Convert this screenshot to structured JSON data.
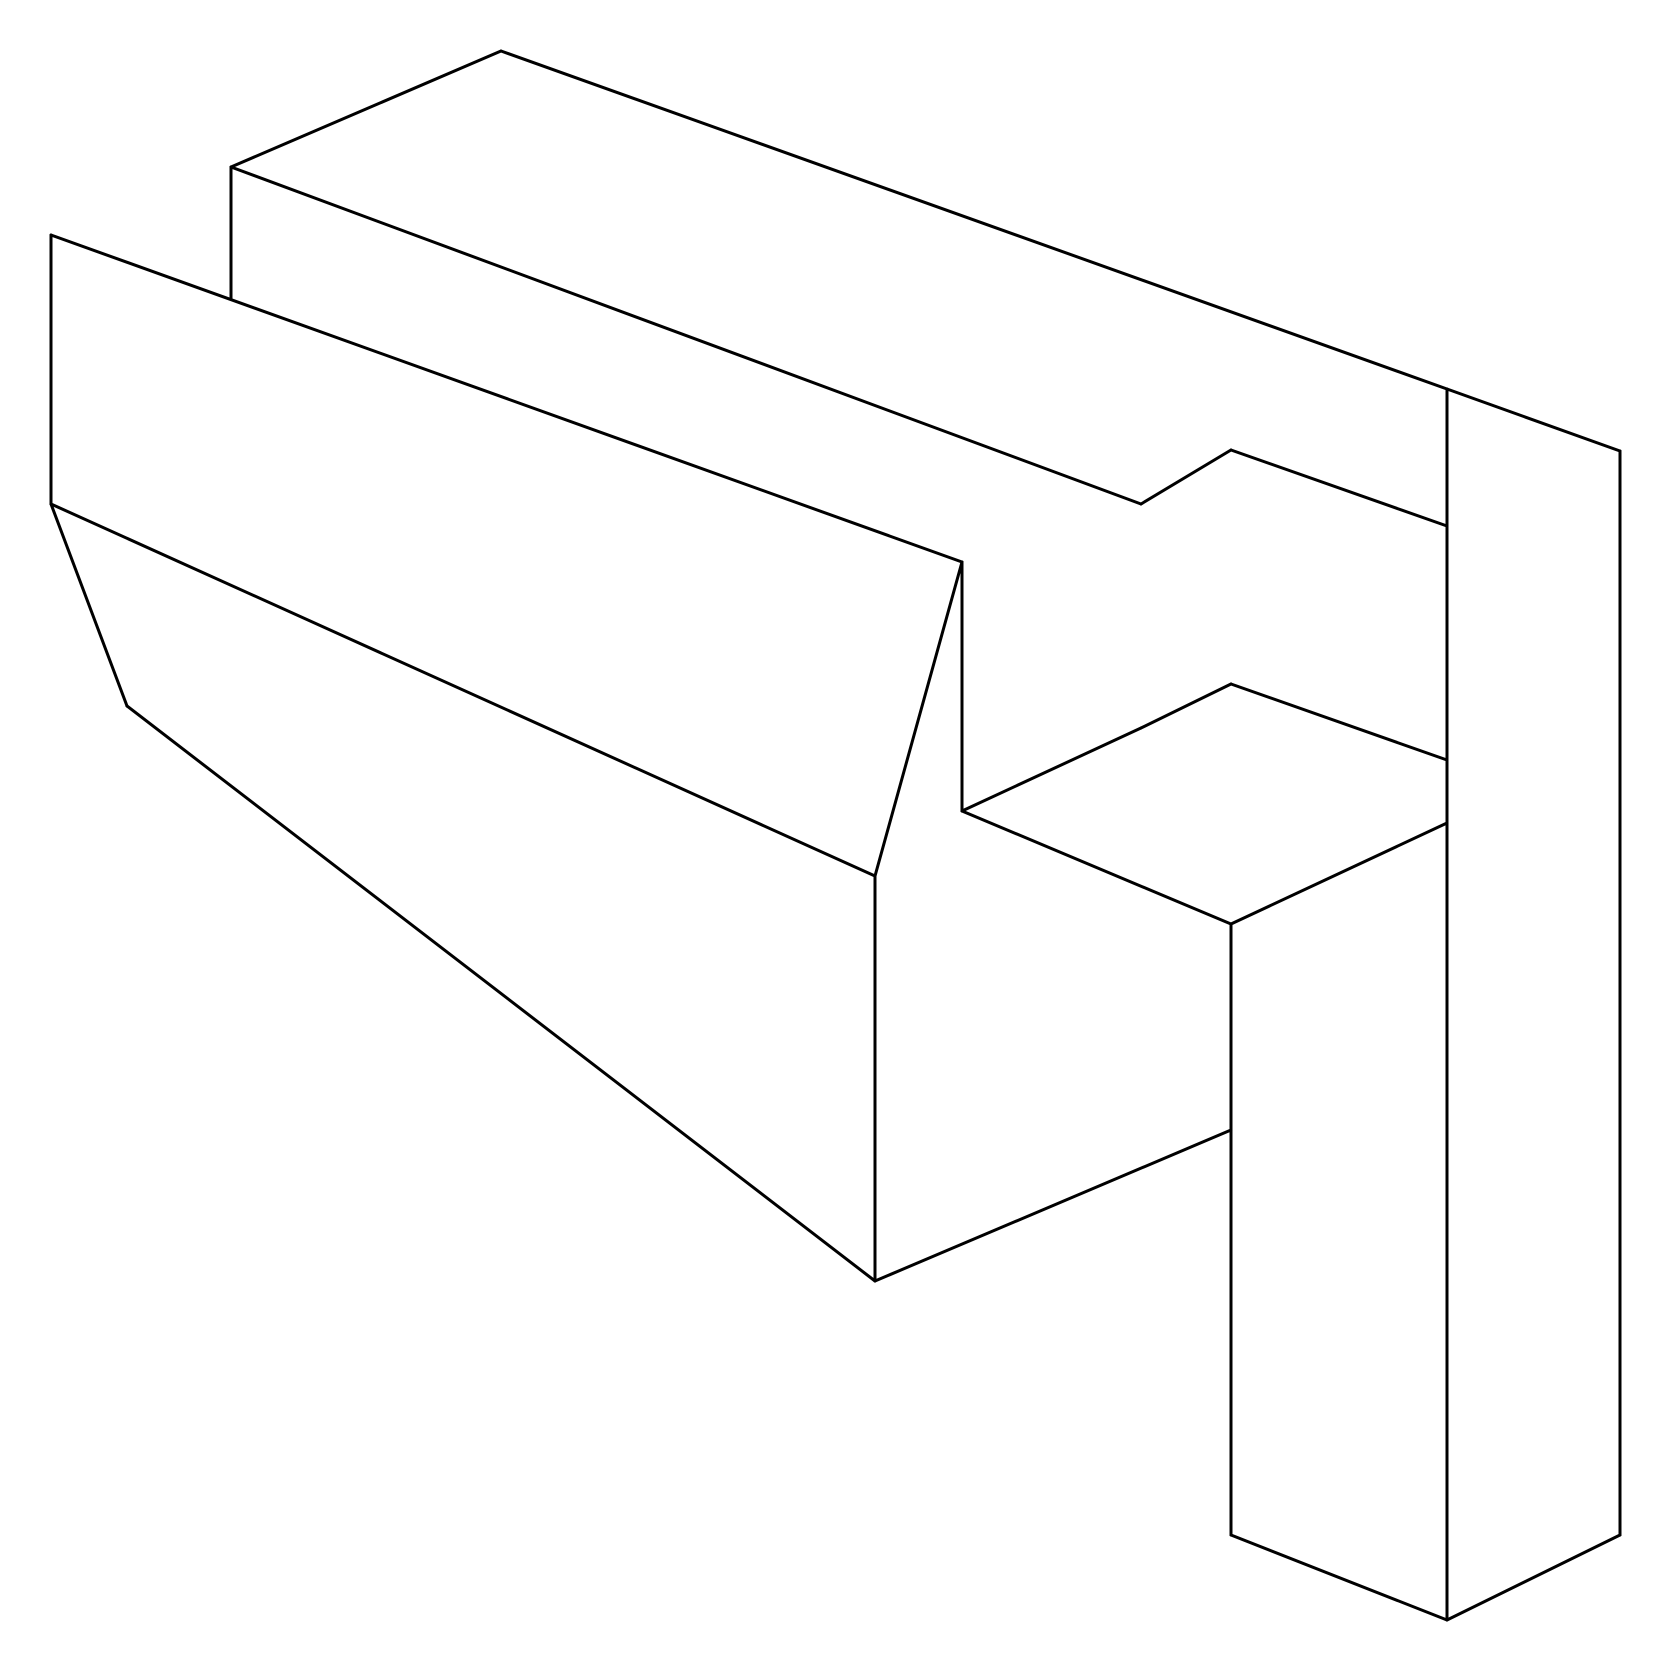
{
  "figure": {
    "background_color": "#ffffff",
    "stroke_color": "#000000"
  }
}
